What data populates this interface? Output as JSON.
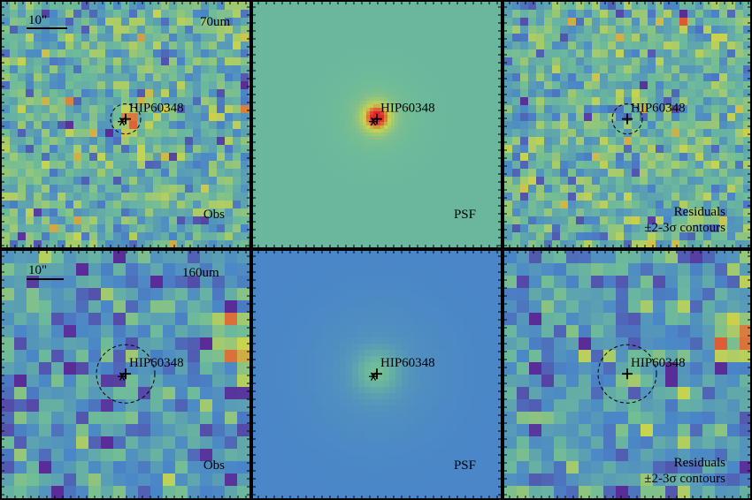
{
  "figure": {
    "source_name": "HIP60348",
    "scale_bar_label": "10\"",
    "colors": {
      "low": "#5a2c97",
      "mid_low": "#4a86c8",
      "mid": "#6dbb9a",
      "mid_high": "#c9d44e",
      "high": "#e8202a",
      "frame": "#000000"
    },
    "rows": [
      {
        "band": "70um",
        "panels": [
          {
            "kind": "obs",
            "caption": "Obs",
            "caption2": ""
          },
          {
            "kind": "psf",
            "caption": "PSF",
            "caption2": ""
          },
          {
            "kind": "residual",
            "caption": "Residuals",
            "caption2": "±2-3σ contours"
          }
        ]
      },
      {
        "band": "160um",
        "panels": [
          {
            "kind": "obs",
            "caption": "Obs",
            "caption2": ""
          },
          {
            "kind": "psf",
            "caption": "PSF",
            "caption2": ""
          },
          {
            "kind": "residual",
            "caption": "Residuals",
            "caption2": "±2-3σ contours"
          }
        ]
      }
    ]
  }
}
